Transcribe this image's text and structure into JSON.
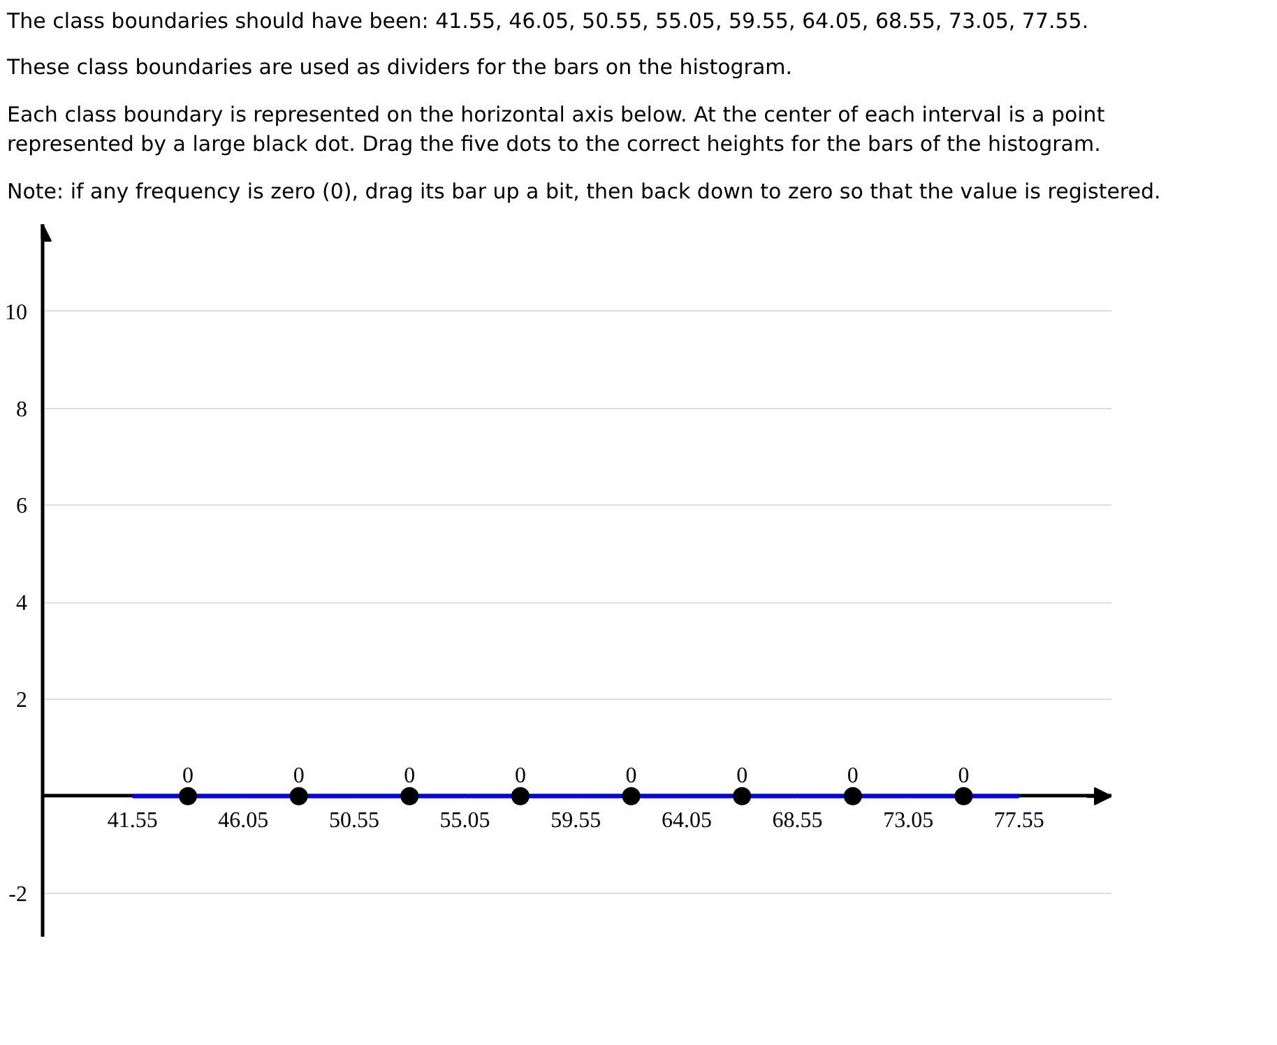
{
  "chart_data": {
    "type": "histogram",
    "annotations": [
      "The class boundaries should have been: 41.55, 46.05, 50.55, 55.05, 59.55, 64.05, 68.55, 73.05, 77.55.",
      "These class boundaries are used as dividers for the bars on the histogram.",
      "Each class boundary is represented on the horizontal axis below. At the center of each interval is a point represented by a large black dot. Drag the five dots to the correct heights for the bars of the histogram.",
      "Note: if any frequency is zero (0), drag its bar up a bit, then back down to zero so that the value is registered."
    ],
    "bins": [
      41.55,
      46.05,
      50.55,
      55.05,
      59.55,
      64.05,
      68.55,
      73.05,
      77.55
    ],
    "values": [
      0,
      0,
      0,
      0,
      0,
      0,
      0,
      0
    ],
    "color": "#0000ff",
    "series": [
      {
        "type": "scatter",
        "color": "#000000",
        "x": [
          43.8,
          48.3,
          52.8,
          57.3,
          61.8,
          66.3,
          70.8,
          75.3
        ],
        "values": [
          0,
          0,
          0,
          0,
          0,
          0,
          0,
          0
        ],
        "value_labels": [
          "0",
          "0",
          "0",
          "0",
          "0",
          "0",
          "0",
          "0"
        ]
      }
    ],
    "marker": "circle",
    "xlim": [
      37.9,
      81.3
    ],
    "ylim": [
      -2.9,
      11.8
    ],
    "xticks": [
      41.55,
      46.05,
      50.55,
      55.05,
      59.55,
      64.05,
      68.55,
      73.05,
      77.55
    ],
    "yticks": [
      10,
      8,
      6,
      4,
      2,
      -2
    ],
    "grid": "y"
  }
}
